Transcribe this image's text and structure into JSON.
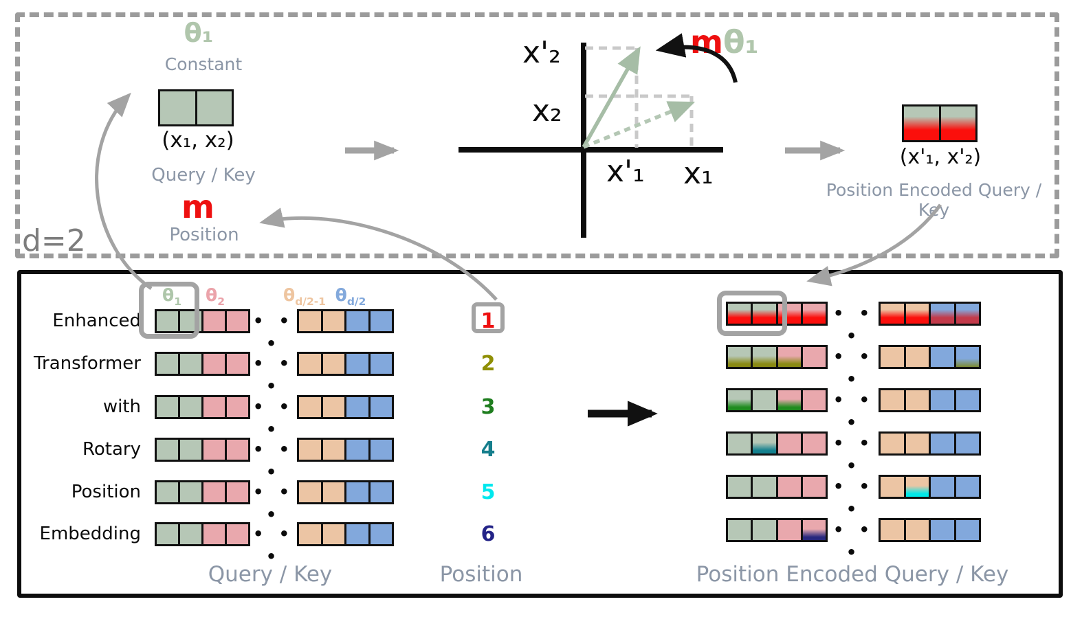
{
  "top_panel": {
    "d_label": "d=2",
    "constant": {
      "symbol": "θ₁",
      "label": "Constant"
    },
    "query_key": {
      "tuple": "(x₁, x₂)",
      "label": "Query / Key"
    },
    "position": {
      "symbol": "m",
      "label": "Position"
    },
    "plot": {
      "x2_rot": "x'₂",
      "x2": "x₂",
      "x1_rot": "x'₁",
      "x1": "x₁",
      "angle_m": "m",
      "angle_theta": "θ₁"
    },
    "encoded": {
      "tuple": "(x'₁, x'₂)",
      "label": "Position Encoded Query / Key"
    }
  },
  "bottom_panel": {
    "headers": [
      {
        "base": "θ",
        "sub": "1",
        "color": "#aec6aa"
      },
      {
        "base": "θ",
        "sub": "2",
        "color": "#eba3aa"
      },
      {
        "base": "θ",
        "sub": "d/2-1",
        "color": "#eec5a0"
      },
      {
        "base": "θ",
        "sub": "d/2",
        "color": "#83a9dc"
      }
    ],
    "ellipsis": "• • •",
    "footer": {
      "query_key": "Query / Key",
      "position": "Position",
      "encoded": "Position Encoded Query / Key"
    },
    "colors": {
      "accent_red": "#ee1010",
      "slate_label": "#8b96a6",
      "highlight_gray": "#a3a3a3",
      "sage_vector": "#a6bda6"
    },
    "cell_colors": {
      "g": "#b6c7b6",
      "p": "#e9a8ad",
      "t": "#ecc5a4",
      "b": "#82a8dc"
    },
    "accent_colors": {
      "red": "#fb0f0c",
      "olive": "#8a8a14",
      "green": "#1f8c1f",
      "teal": "#13808e",
      "cyan": "#00e8e8",
      "navy": "#27277e",
      "bluered": "#c23a4a",
      "blueolive": "#7d8b33"
    },
    "rows": [
      {
        "word": "Enhanced",
        "position": "1",
        "position_color": "#ee1010",
        "encoded": [
          {
            "b": "g",
            "a": "red",
            "s": "strong"
          },
          {
            "b": "g",
            "a": "red",
            "s": "strong"
          },
          {
            "b": "p",
            "a": "red",
            "s": "strong"
          },
          {
            "b": "p",
            "a": "red",
            "s": "strong"
          },
          {
            "b": "t",
            "a": "red",
            "s": "strong"
          },
          {
            "b": "t",
            "a": "red",
            "s": "strong"
          },
          {
            "b": "b",
            "a": "bluered",
            "s": "strong"
          },
          {
            "b": "b",
            "a": "bluered",
            "s": "strong"
          }
        ]
      },
      {
        "word": "Transformer",
        "position": "2",
        "position_color": "#8f8f05",
        "encoded": [
          {
            "b": "g",
            "a": "olive",
            "s": "med"
          },
          {
            "b": "g",
            "a": "olive",
            "s": "med"
          },
          {
            "b": "p",
            "a": "olive",
            "s": "med"
          },
          {
            "b": "p"
          },
          {
            "b": "t"
          },
          {
            "b": "t"
          },
          {
            "b": "b"
          },
          {
            "b": "b",
            "a": "blueolive",
            "s": "small"
          }
        ]
      },
      {
        "word": "with",
        "position": "3",
        "position_color": "#1e7d1e",
        "encoded": [
          {
            "b": "g",
            "a": "green",
            "s": "med"
          },
          {
            "b": "g"
          },
          {
            "b": "p",
            "a": "green",
            "s": "med"
          },
          {
            "b": "p"
          },
          {
            "b": "t"
          },
          {
            "b": "t"
          },
          {
            "b": "b"
          },
          {
            "b": "b"
          }
        ]
      },
      {
        "word": "Rotary",
        "position": "4",
        "position_color": "#157e8c",
        "encoded": [
          {
            "b": "g"
          },
          {
            "b": "g",
            "a": "teal",
            "s": "med"
          },
          {
            "b": "p"
          },
          {
            "b": "p"
          },
          {
            "b": "t"
          },
          {
            "b": "t"
          },
          {
            "b": "b"
          },
          {
            "b": "b"
          }
        ]
      },
      {
        "word": "Position",
        "position": "5",
        "position_color": "#00e8ee",
        "encoded": [
          {
            "b": "g"
          },
          {
            "b": "g"
          },
          {
            "b": "p"
          },
          {
            "b": "p"
          },
          {
            "b": "t"
          },
          {
            "b": "t",
            "a": "cyan",
            "s": "med"
          },
          {
            "b": "b"
          },
          {
            "b": "b"
          }
        ]
      },
      {
        "word": "Embedding",
        "position": "6",
        "position_color": "#232387",
        "encoded": [
          {
            "b": "g"
          },
          {
            "b": "g"
          },
          {
            "b": "p"
          },
          {
            "b": "p",
            "a": "navy",
            "s": "med"
          },
          {
            "b": "t"
          },
          {
            "b": "t"
          },
          {
            "b": "b"
          },
          {
            "b": "b"
          }
        ]
      }
    ]
  }
}
